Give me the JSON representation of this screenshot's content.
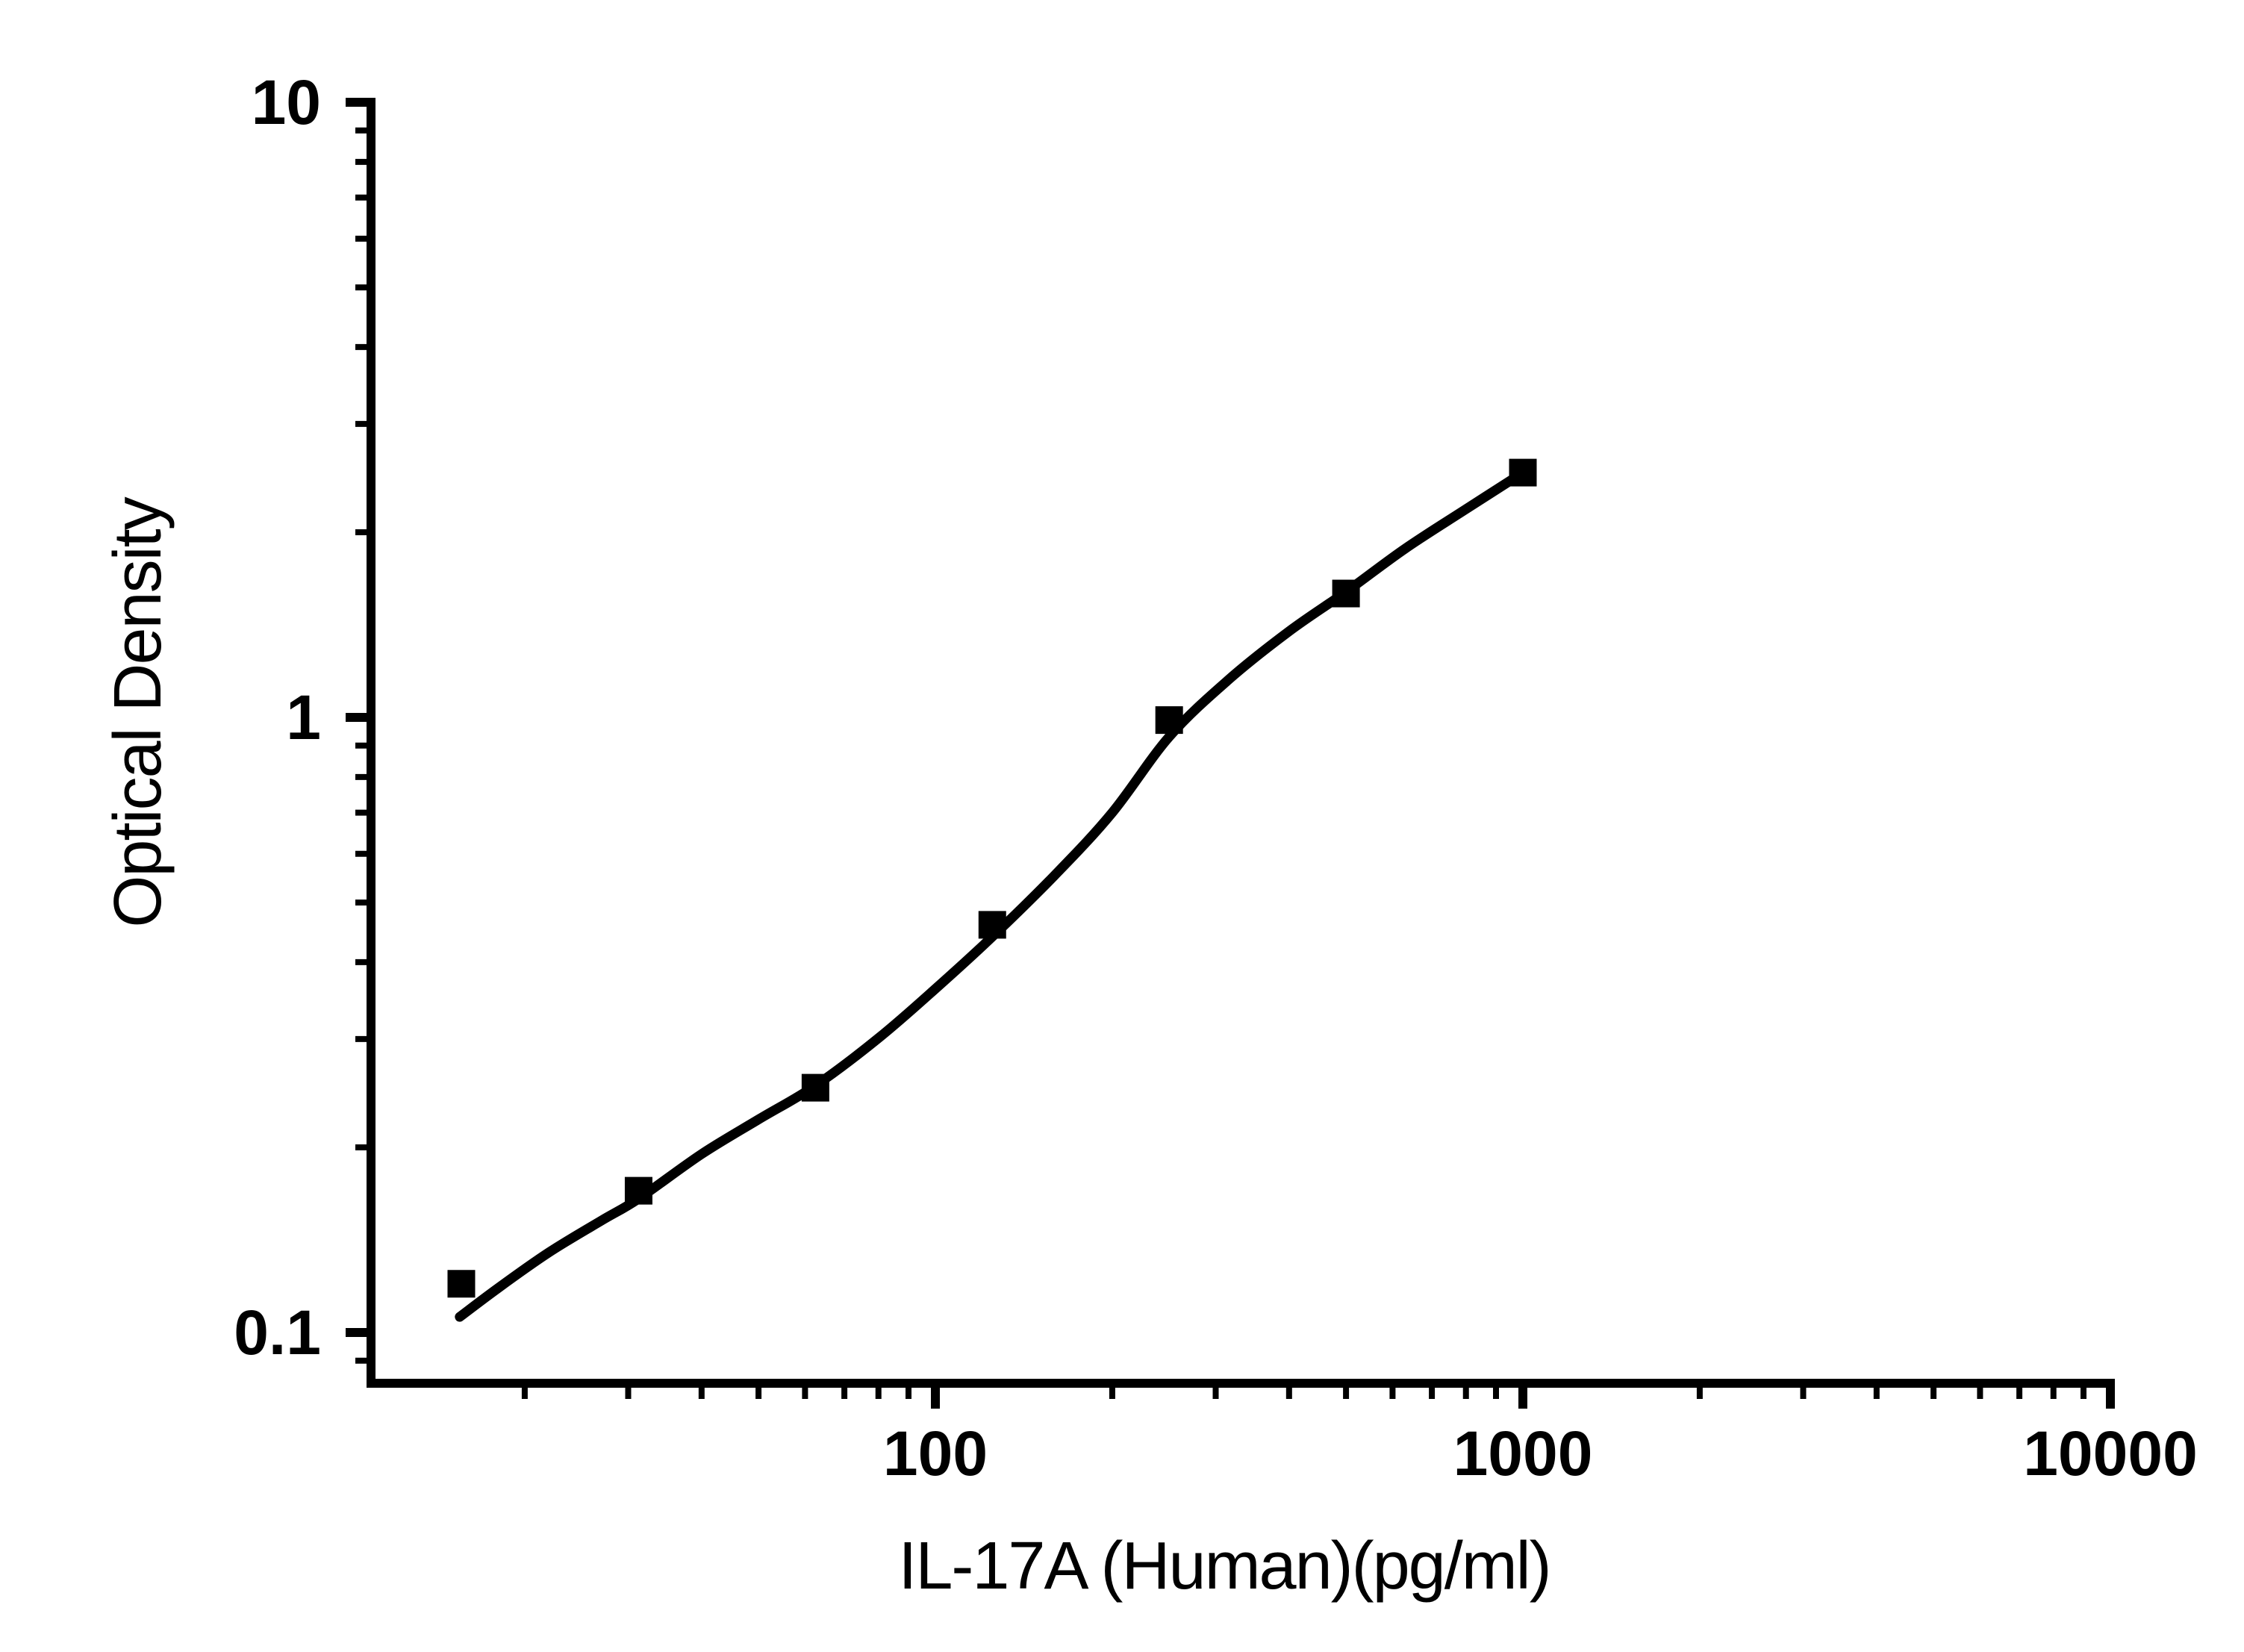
{
  "figure": {
    "background_color": "#ffffff",
    "ink_color": "#000000"
  },
  "chart_data": {
    "type": "scatter",
    "title": "",
    "xlabel": "IL-17A (Human)(pg/ml)",
    "ylabel": "Optical Density",
    "x_scale": "log",
    "y_scale": "log",
    "x_range": [
      11,
      10000
    ],
    "y_range": [
      0.083,
      10
    ],
    "x_ticks": [
      100,
      1000,
      10000
    ],
    "x_tick_labels": [
      "100",
      "1000",
      "10000"
    ],
    "y_ticks": [
      10,
      1,
      0.1
    ],
    "y_tick_labels": [
      "10",
      "1",
      "0.1"
    ],
    "grid": false,
    "legend_position": "none",
    "marker_shape": "filled-square",
    "marker_color": "#000000",
    "line_color": "#000000",
    "series": [
      {
        "name": "standard-curve-points",
        "x": [
          15.6,
          31.25,
          62.5,
          125,
          250,
          500,
          1000
        ],
        "values": [
          0.12,
          0.17,
          0.25,
          0.46,
          0.99,
          1.59,
          2.5
        ]
      }
    ],
    "fit_curve": {
      "name": "4PL-fit-curve",
      "points": [
        [
          15.5,
          0.106
        ],
        [
          18,
          0.118
        ],
        [
          22,
          0.135
        ],
        [
          27,
          0.152
        ],
        [
          31.25,
          0.165
        ],
        [
          40,
          0.195
        ],
        [
          50,
          0.222
        ],
        [
          62.5,
          0.252
        ],
        [
          80,
          0.301
        ],
        [
          100,
          0.362
        ],
        [
          125,
          0.44
        ],
        [
          160,
          0.555
        ],
        [
          200,
          0.7
        ],
        [
          250,
          0.93
        ],
        [
          315,
          1.15
        ],
        [
          400,
          1.38
        ],
        [
          500,
          1.6
        ],
        [
          630,
          1.88
        ],
        [
          800,
          2.18
        ],
        [
          1000,
          2.5
        ]
      ]
    }
  }
}
